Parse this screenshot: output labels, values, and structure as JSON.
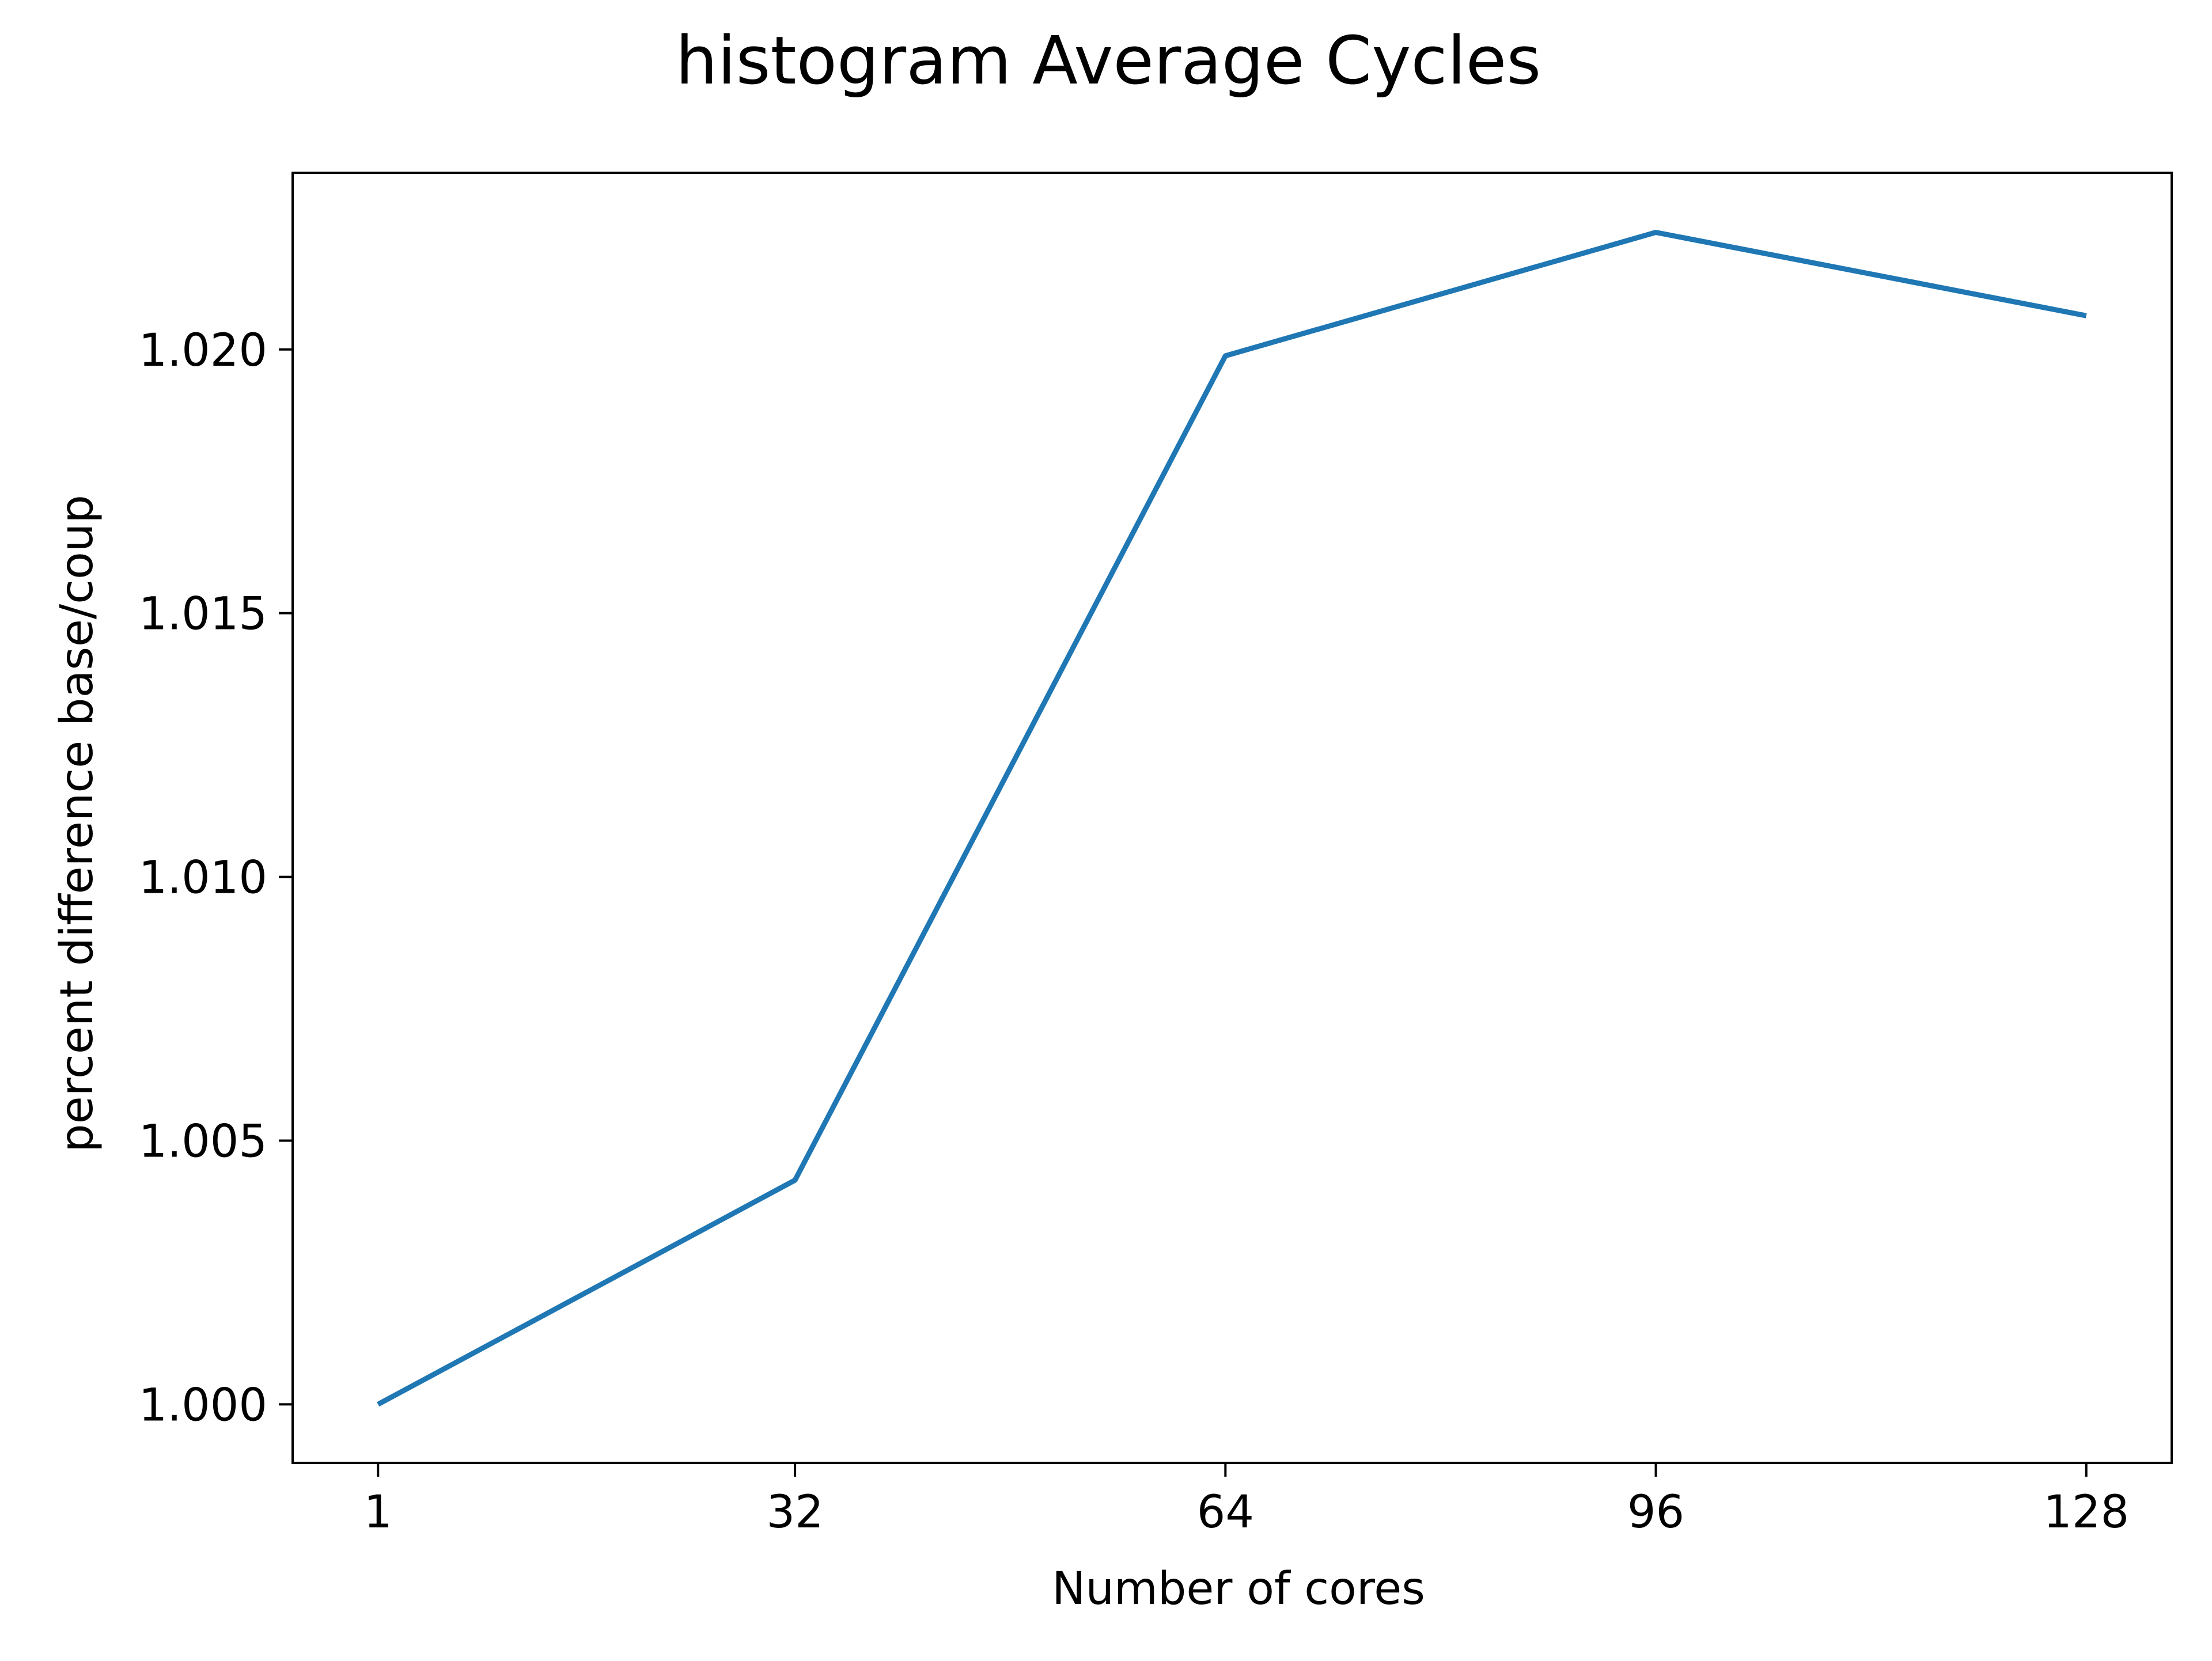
{
  "chart_data": {
    "type": "line",
    "title": "histogram Average Cycles",
    "xlabel": "Number of cores",
    "ylabel": "percent difference base/coup",
    "x": [
      1,
      32,
      64,
      96,
      128
    ],
    "x_tick_labels": [
      "1",
      "32",
      "64",
      "96",
      "128"
    ],
    "y_ticks": [
      1.0,
      1.005,
      1.01,
      1.015,
      1.02
    ],
    "y_tick_labels": [
      "1.000",
      "1.005",
      "1.010",
      "1.015",
      "1.020"
    ],
    "xlim": [
      -5.35,
      134.35
    ],
    "ylim": [
      0.99889,
      1.02335
    ],
    "grid": false,
    "legend": "none",
    "series": [
      {
        "values": [
          1.0,
          1.00425,
          1.01988,
          1.02222,
          1.02064
        ],
        "color": "#1f77b4"
      }
    ]
  }
}
